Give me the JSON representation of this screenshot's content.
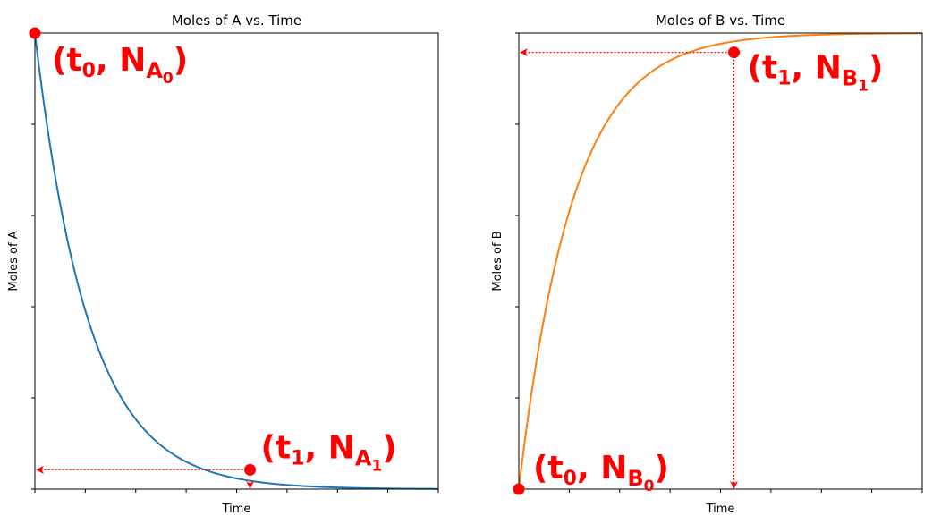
{
  "chart_data": [
    {
      "type": "line",
      "title": "Moles of A vs. Time",
      "xlabel": "Time",
      "ylabel": "Moles of A",
      "xlim": [
        0,
        7.5
      ],
      "ylim": [
        0,
        1
      ],
      "tick_labels_shown": false,
      "series": [
        {
          "color": "#1f77b4",
          "x": [
            0,
            0.5,
            1,
            1.5,
            2,
            2.5,
            3,
            3.5,
            4,
            4.5,
            5,
            5.5,
            6,
            6.5,
            7,
            7.5
          ],
          "values": [
            1.0,
            0.6065,
            0.3679,
            0.2231,
            0.1353,
            0.0821,
            0.0498,
            0.0302,
            0.0183,
            0.0111,
            0.0067,
            0.0041,
            0.0025,
            0.0015,
            0.0009,
            0.0006
          ]
        }
      ],
      "annotations": [
        {
          "x": 0,
          "y": 1.0,
          "label_base": "(t",
          "label_sub": "0",
          "label_mid": ", N",
          "label_sub_main": "A",
          "label_sub_sub": "0",
          "label_end": ")",
          "color": "#ff0000"
        },
        {
          "x": 4,
          "y": 0.0424,
          "label_base": "(t",
          "label_sub": "1",
          "label_mid": ", N",
          "label_sub_main": "A",
          "label_sub_sub": "1",
          "label_end": ")",
          "color": "#ff0000"
        }
      ]
    },
    {
      "type": "line",
      "title": "Moles of B vs. Time",
      "xlabel": "Time",
      "ylabel": "Moles of B",
      "xlim": [
        0,
        7.5
      ],
      "ylim": [
        0,
        1
      ],
      "tick_labels_shown": false,
      "series": [
        {
          "color": "#ff7f0e",
          "x": [
            0,
            0.5,
            1,
            1.5,
            2,
            2.5,
            3,
            3.5,
            4,
            4.5,
            5,
            5.5,
            6,
            6.5,
            7,
            7.5
          ],
          "values": [
            0.0,
            0.3935,
            0.6321,
            0.7769,
            0.8647,
            0.9179,
            0.9502,
            0.9698,
            0.9817,
            0.9889,
            0.9933,
            0.9959,
            0.9975,
            0.9985,
            0.9991,
            0.9994
          ]
        }
      ],
      "annotations": [
        {
          "x": 0,
          "y": 0.0,
          "label_base": "(t",
          "label_sub": "0",
          "label_mid": ", N",
          "label_sub_main": "B",
          "label_sub_sub": "0",
          "label_end": ")",
          "color": "#ff0000"
        },
        {
          "x": 4,
          "y": 0.9576,
          "label_base": "(t",
          "label_sub": "1",
          "label_mid": ", N",
          "label_sub_main": "B",
          "label_sub_sub": "1",
          "label_end": ")",
          "color": "#ff0000"
        }
      ]
    }
  ]
}
